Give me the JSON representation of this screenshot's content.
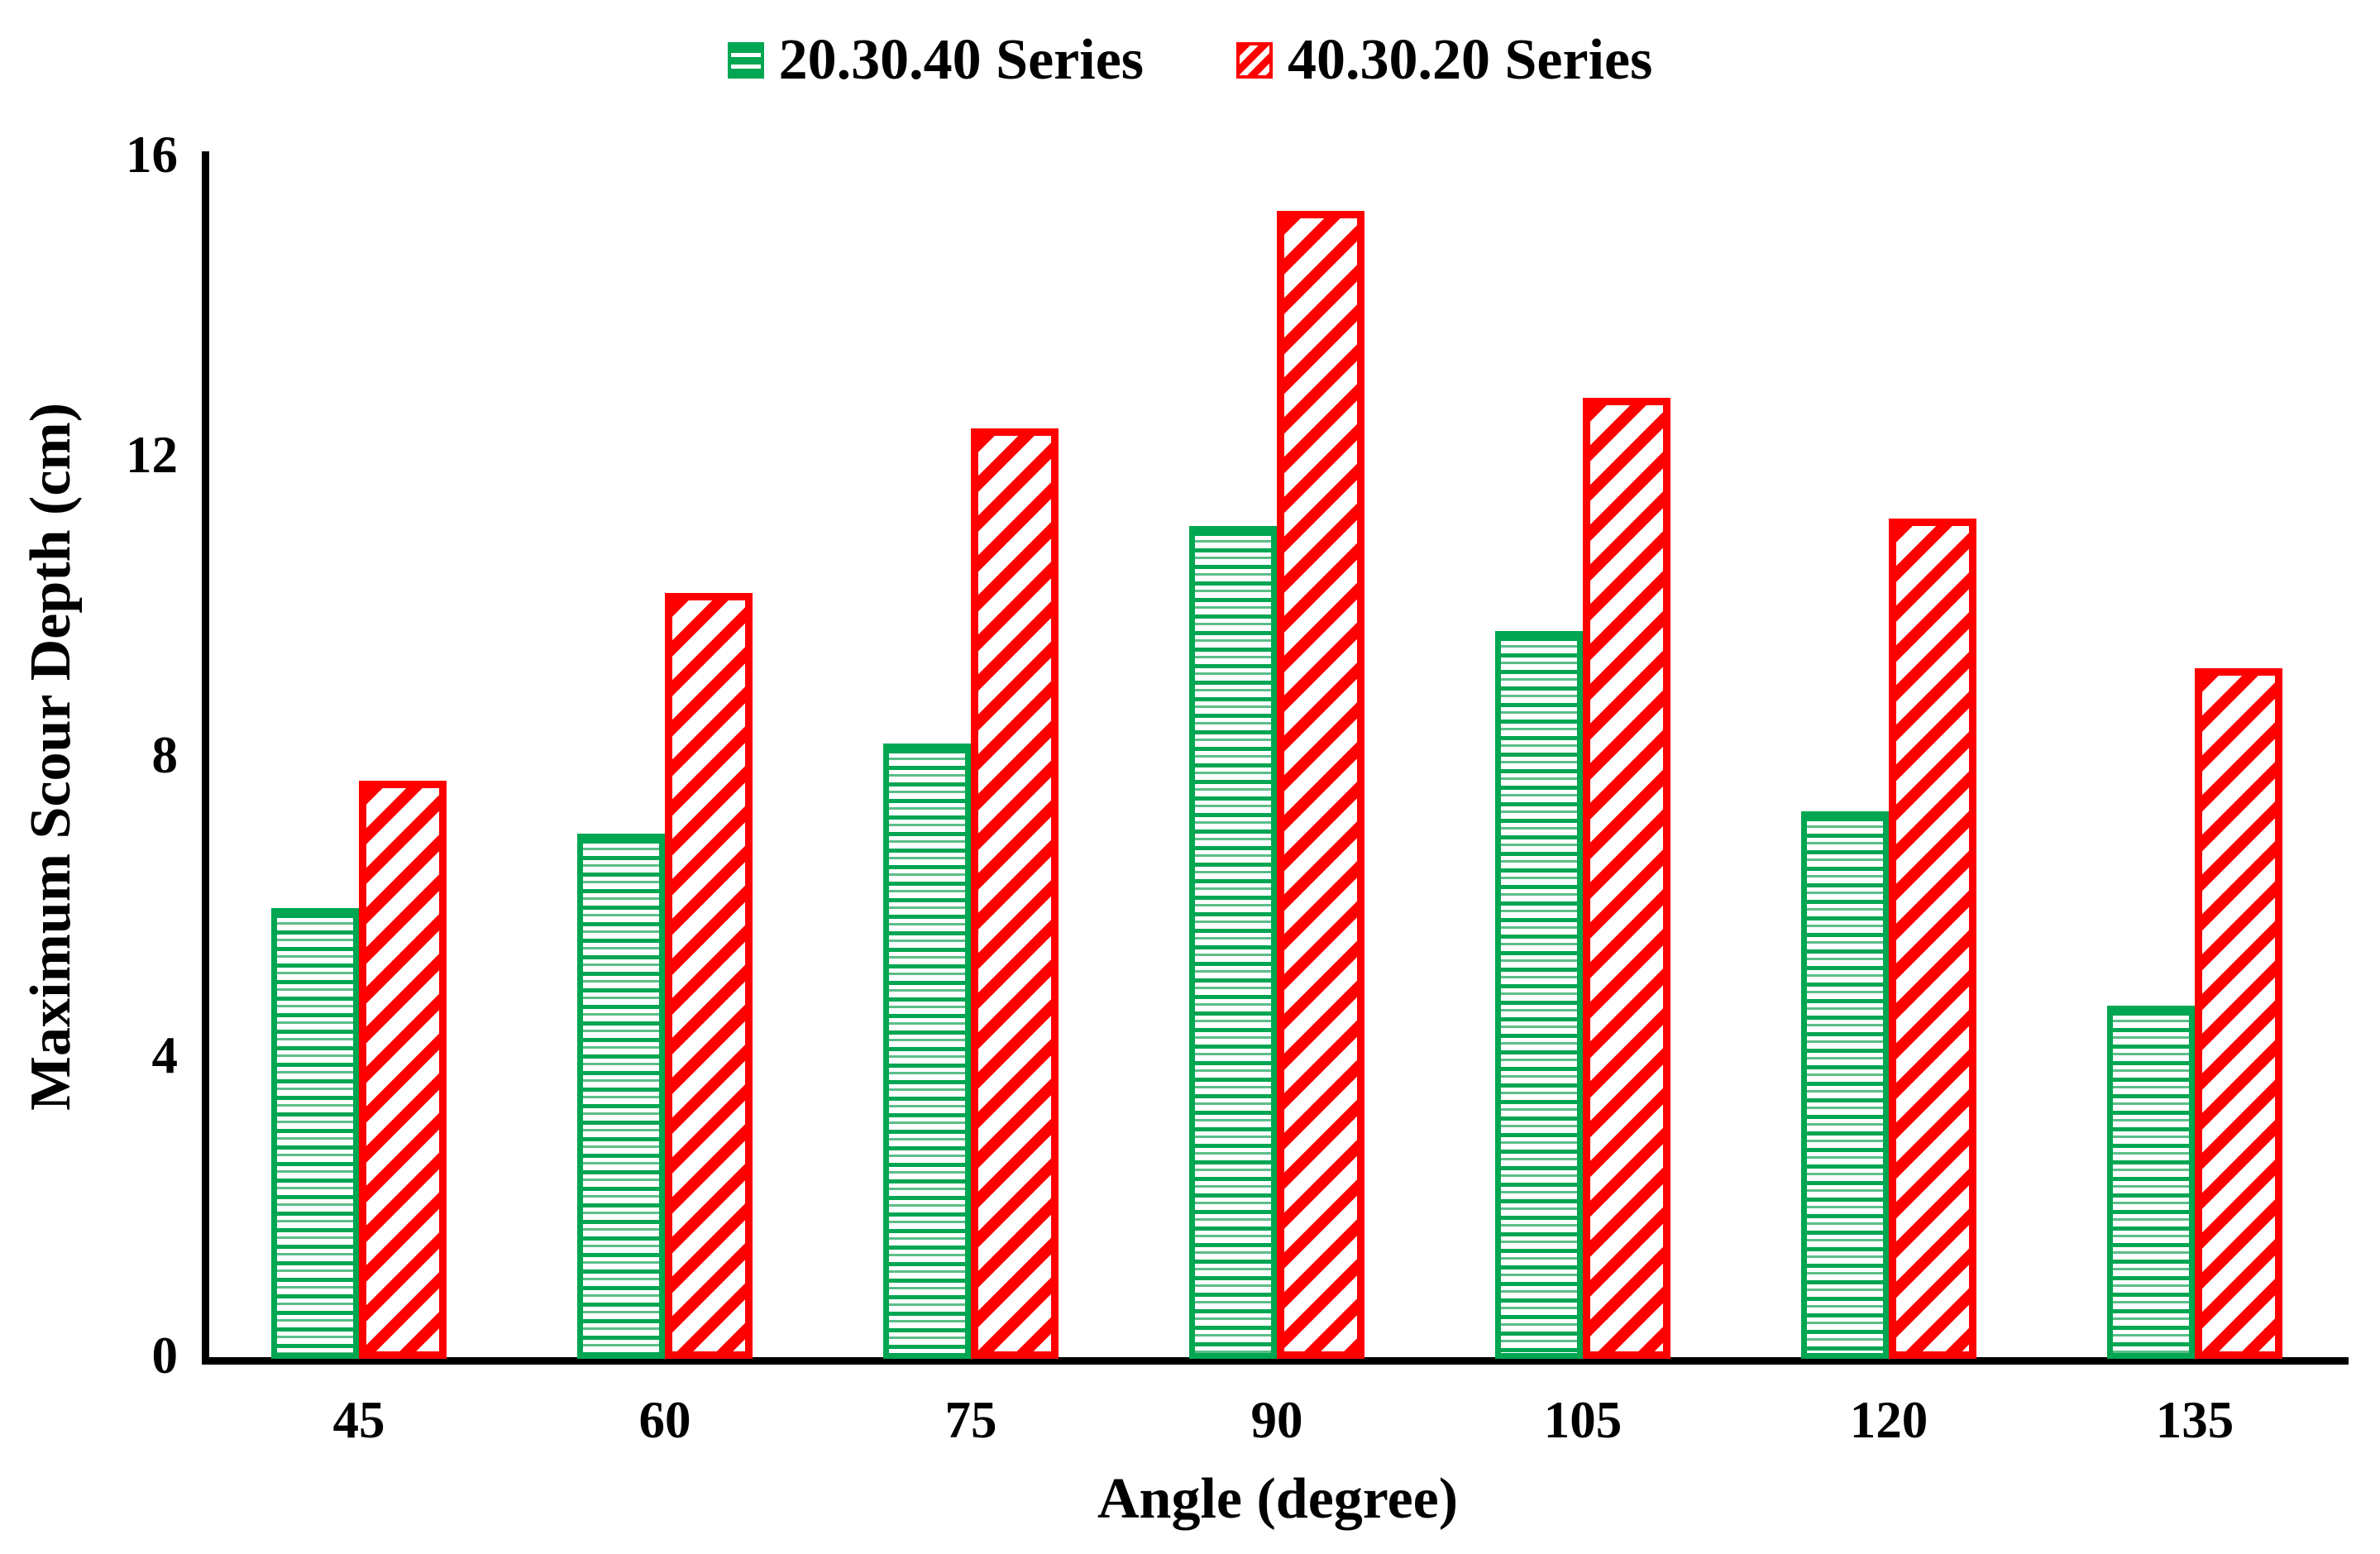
{
  "chart_data": {
    "type": "bar",
    "categories": [
      "45",
      "60",
      "75",
      "90",
      "105",
      "120",
      "135"
    ],
    "series": [
      {
        "name": "20.30.40 Series",
        "color": "#00A651",
        "pattern": "horizontal-lines",
        "values": [
          6.0,
          7.0,
          8.2,
          11.1,
          9.7,
          7.3,
          4.7
        ]
      },
      {
        "name": "40.30.20 Series",
        "color": "#FF0000",
        "pattern": "diagonal-stripes",
        "values": [
          7.7,
          10.2,
          12.4,
          15.3,
          12.8,
          11.2,
          9.2
        ]
      }
    ],
    "title": "",
    "xlabel": "Angle (degree)",
    "ylabel": "Maximum Scour Depth (cm)",
    "ylim": [
      0,
      16
    ],
    "yticks": [
      0,
      4,
      8,
      12,
      16
    ],
    "legend_position": "top",
    "grid": false,
    "axis_color": "#000000",
    "background_color": "#FFFFFF"
  }
}
